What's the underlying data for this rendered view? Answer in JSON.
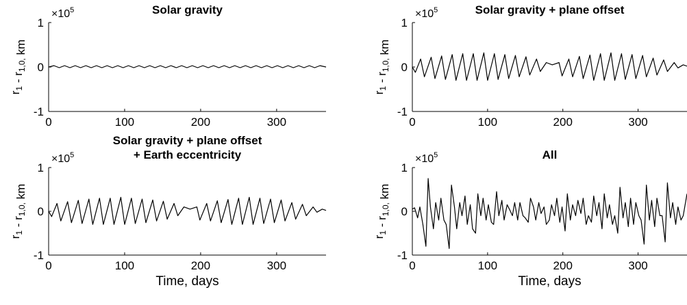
{
  "figure": {
    "background": "#ffffff",
    "line_color": "#000000"
  },
  "chart_data": [
    {
      "type": "line",
      "title": "Solar gravity",
      "title_lines": [
        "Solar gravity"
      ],
      "xlabel": "",
      "ylabel": "r_1 - r_1,0, km",
      "xlim": [
        0,
        365
      ],
      "ylim": [
        -100000,
        100000
      ],
      "xticks": [
        0,
        100,
        200,
        300
      ],
      "yticks": [
        -1,
        0,
        1
      ],
      "yscale_multiplier": "×10^5",
      "series": [
        {
          "x": [
            0,
            7,
            14,
            21,
            28,
            35,
            42,
            49,
            56,
            63,
            70,
            77,
            84,
            91,
            98,
            105,
            112,
            119,
            126,
            133,
            140,
            147,
            154,
            161,
            168,
            175,
            182,
            189,
            196,
            203,
            210,
            217,
            224,
            231,
            238,
            245,
            252,
            259,
            266,
            273,
            280,
            287,
            294,
            301,
            308,
            315,
            322,
            329,
            336,
            343,
            350,
            357,
            365
          ],
          "values": [
            0,
            3000,
            -1500,
            3000,
            -1500,
            3000,
            -1500,
            3000,
            -1500,
            3000,
            -1500,
            3000,
            -1500,
            3000,
            -1500,
            3000,
            -1500,
            3000,
            -1500,
            3000,
            -1500,
            3000,
            -1500,
            3000,
            -1500,
            3000,
            -1500,
            3000,
            -1500,
            3000,
            -1500,
            3000,
            -1500,
            3000,
            -1500,
            3000,
            -1500,
            3000,
            -1500,
            3000,
            -1500,
            3000,
            -1500,
            3000,
            -1500,
            3000,
            -1500,
            3000,
            -1500,
            3000,
            -1500,
            3000,
            0
          ]
        }
      ]
    },
    {
      "type": "line",
      "title": "Solar gravity + plane offset",
      "title_lines": [
        "Solar gravity + plane offset"
      ],
      "xlabel": "",
      "ylabel": "r_1 - r_1,0, km",
      "xlim": [
        0,
        365
      ],
      "ylim": [
        -100000,
        100000
      ],
      "xticks": [
        0,
        100,
        200,
        300
      ],
      "yticks": [
        -1,
        0,
        1
      ],
      "yscale_multiplier": "×10^5",
      "series": [
        {
          "x": [
            0,
            4,
            11,
            16,
            25,
            30,
            39,
            44,
            53,
            58,
            67,
            72,
            81,
            86,
            95,
            100,
            109,
            114,
            123,
            128,
            137,
            142,
            151,
            156,
            165,
            170,
            178,
            186,
            195,
            199,
            208,
            213,
            222,
            227,
            236,
            241,
            250,
            255,
            264,
            269,
            278,
            283,
            292,
            297,
            306,
            311,
            320,
            325,
            334,
            339,
            348,
            353,
            360,
            365
          ],
          "values": [
            0,
            -12000,
            18000,
            -22000,
            22000,
            -26000,
            25000,
            -28000,
            28000,
            -30000,
            30000,
            -30000,
            30000,
            -30000,
            32000,
            -30000,
            30000,
            -28000,
            28000,
            -26000,
            26000,
            -22000,
            23000,
            -18000,
            18000,
            -10000,
            10000,
            5000,
            10000,
            -20000,
            18000,
            -22000,
            24000,
            -26000,
            27000,
            -30000,
            30000,
            -30000,
            32000,
            -30000,
            30000,
            -28000,
            28000,
            -26000,
            26000,
            -22000,
            20000,
            -18000,
            16000,
            -10000,
            10000,
            -2000,
            5000,
            2000
          ]
        }
      ]
    },
    {
      "type": "line",
      "title": "Solar gravity + plane offset\n+ Earth eccentricity",
      "title_lines": [
        "Solar gravity + plane offset",
        "+ Earth eccentricity"
      ],
      "xlabel": "Time, days",
      "ylabel": "r_1 - r_1,0, km",
      "xlim": [
        0,
        365
      ],
      "ylim": [
        -100000,
        100000
      ],
      "xticks": [
        0,
        100,
        200,
        300
      ],
      "yticks": [
        -1,
        0,
        1
      ],
      "yscale_multiplier": "×10^5",
      "series": [
        {
          "x": [
            0,
            4,
            11,
            16,
            25,
            30,
            39,
            44,
            53,
            58,
            67,
            72,
            81,
            86,
            95,
            100,
            109,
            114,
            123,
            128,
            137,
            142,
            151,
            156,
            165,
            170,
            178,
            186,
            195,
            199,
            208,
            213,
            222,
            227,
            236,
            241,
            250,
            255,
            264,
            269,
            278,
            283,
            292,
            297,
            306,
            311,
            320,
            325,
            334,
            339,
            348,
            353,
            360,
            365
          ],
          "values": [
            0,
            -12000,
            18000,
            -22000,
            22000,
            -26000,
            25000,
            -28000,
            28000,
            -30000,
            30000,
            -30000,
            30000,
            -30000,
            32000,
            -30000,
            30000,
            -28000,
            28000,
            -26000,
            26000,
            -22000,
            23000,
            -18000,
            18000,
            -10000,
            10000,
            5000,
            10000,
            -20000,
            18000,
            -22000,
            24000,
            -26000,
            27000,
            -30000,
            30000,
            -30000,
            32000,
            -30000,
            30000,
            -28000,
            28000,
            -26000,
            26000,
            -22000,
            20000,
            -18000,
            16000,
            -10000,
            10000,
            -2000,
            5000,
            2000
          ]
        }
      ]
    },
    {
      "type": "line",
      "title": "All",
      "title_lines": [
        "All"
      ],
      "xlabel": "Time, days",
      "ylabel": "r_1 - r_1,0, km",
      "xlim": [
        0,
        365
      ],
      "ylim": [
        -100000,
        100000
      ],
      "xticks": [
        0,
        100,
        200,
        300
      ],
      "yticks": [
        -1,
        0,
        1
      ],
      "yscale_multiplier": "×10^5",
      "series": [
        {
          "x": [
            0,
            3,
            7,
            10,
            14,
            18,
            21,
            24,
            28,
            31,
            35,
            38,
            42,
            45,
            49,
            52,
            56,
            59,
            63,
            66,
            70,
            73,
            77,
            80,
            84,
            87,
            91,
            94,
            98,
            101,
            105,
            108,
            112,
            115,
            119,
            122,
            126,
            129,
            133,
            136,
            140,
            143,
            147,
            150,
            154,
            157,
            161,
            164,
            168,
            171,
            175,
            178,
            182,
            185,
            189,
            192,
            196,
            199,
            203,
            206,
            210,
            213,
            217,
            220,
            224,
            227,
            231,
            234,
            238,
            241,
            245,
            248,
            252,
            255,
            259,
            262,
            266,
            269,
            273,
            276,
            280,
            283,
            287,
            290,
            294,
            297,
            301,
            304,
            308,
            311,
            315,
            318,
            322,
            325,
            329,
            332,
            336,
            339,
            343,
            346,
            350,
            353,
            357,
            360,
            365
          ],
          "values": [
            5000,
            8000,
            -15000,
            10000,
            -30000,
            -80000,
            75000,
            10000,
            -40000,
            20000,
            -20000,
            30000,
            -20000,
            -30000,
            -85000,
            60000,
            10000,
            -40000,
            20000,
            -10000,
            35000,
            -30000,
            15000,
            -40000,
            -50000,
            40000,
            -10000,
            30000,
            -20000,
            15000,
            -25000,
            -30000,
            45000,
            -10000,
            25000,
            -20000,
            15000,
            5000,
            -10000,
            20000,
            -20000,
            20000,
            -10000,
            -15000,
            -25000,
            30000,
            10000,
            -20000,
            20000,
            -5000,
            10000,
            -30000,
            -20000,
            15000,
            -10000,
            30000,
            -25000,
            10000,
            -45000,
            40000,
            -20000,
            15000,
            -10000,
            25000,
            -5000,
            30000,
            -30000,
            -10000,
            -25000,
            35000,
            -10000,
            20000,
            -40000,
            40000,
            -15000,
            15000,
            -30000,
            -10000,
            -50000,
            55000,
            -15000,
            20000,
            -35000,
            30000,
            -30000,
            20000,
            -10000,
            -20000,
            -75000,
            60000,
            -20000,
            25000,
            -35000,
            30000,
            -10000,
            -10000,
            -70000,
            65000,
            -15000,
            20000,
            -30000,
            10000,
            -20000,
            -10000,
            40000
          ]
        }
      ]
    }
  ]
}
